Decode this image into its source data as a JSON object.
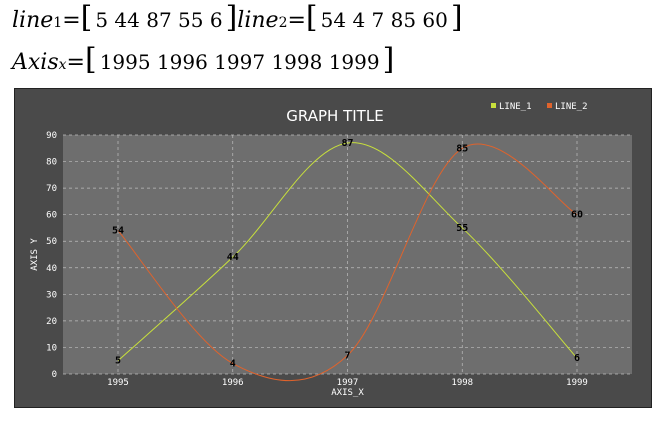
{
  "equations": {
    "line1": {
      "name": "line",
      "sub": "1",
      "values": "5  44  87  55  6"
    },
    "line2": {
      "name": "line",
      "sub": "2",
      "values": "54  4  7  85  60"
    },
    "axis": {
      "name": "Axis",
      "sub": "x",
      "values": "1995  1996  1997  1998  1999"
    }
  },
  "chart_data": {
    "type": "line",
    "title": "GRAPH TITLE",
    "xlabel": "AXIS_X",
    "ylabel": "AXIS Y",
    "categories": [
      "1995",
      "1996",
      "1997",
      "1998",
      "1999"
    ],
    "series": [
      {
        "name": "LINE_1",
        "values": [
          5,
          44,
          87,
          55,
          6
        ],
        "color": "#c8e03c"
      },
      {
        "name": "LINE_2",
        "values": [
          54,
          4,
          7,
          85,
          60
        ],
        "color": "#e0632c"
      }
    ],
    "ylim": [
      0,
      90
    ],
    "yticks": [
      0,
      10,
      20,
      30,
      40,
      50,
      60,
      70,
      80,
      90
    ],
    "grid": true,
    "smooth": true,
    "legend": "top-right",
    "plot_background": "#6e6e6e",
    "frame_background": "#4a4a4a"
  }
}
